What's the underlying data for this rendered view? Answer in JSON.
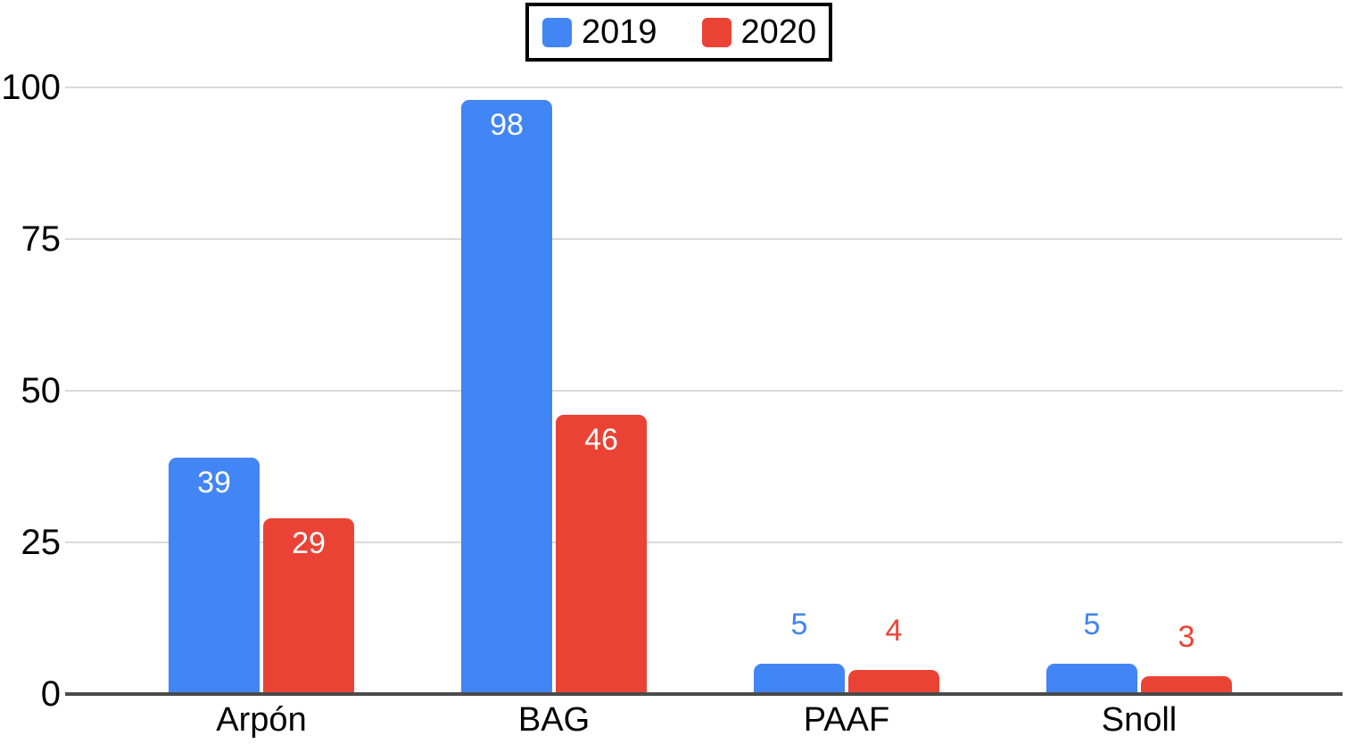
{
  "chart_data": {
    "type": "bar",
    "title": "",
    "xlabel": "",
    "ylabel": "",
    "categories": [
      "Arpón",
      "BAG",
      "PAAF",
      "Snoll"
    ],
    "series": [
      {
        "name": "2019",
        "color": "#4285F4",
        "values": [
          39,
          98,
          5,
          5
        ]
      },
      {
        "name": "2020",
        "color": "#EA4335",
        "values": [
          29,
          46,
          4,
          3
        ]
      }
    ],
    "ylim": [
      0,
      100
    ],
    "yticks": [
      0,
      25,
      50,
      75,
      100
    ],
    "grid": true,
    "legend_position": "top",
    "data_labels": true
  },
  "colors": {
    "background": "#ffffff",
    "gridline": "#d9d9d9",
    "axis_line": "#4a4a4a",
    "tick_text": "#000000",
    "inside_label_text": "#ffffff"
  }
}
